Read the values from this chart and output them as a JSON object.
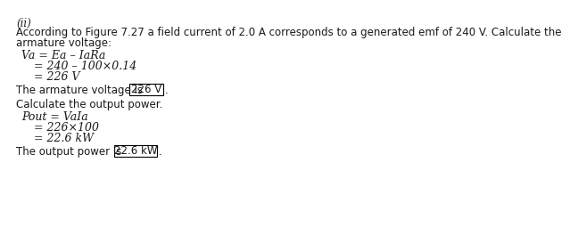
{
  "background_color": "#ffffff",
  "text_color": "#1a1a1a",
  "part_label": "(ii)",
  "intro_line1": "According to Figure 7.27 a field current of 2.0 A corresponds to a generated emf of 240 V. Calculate the",
  "intro_line2": "armature voltage:",
  "eq1": "Va = Ea – IaRa",
  "eq2": "= 240 – 100×0.14",
  "eq3": "= 226 V",
  "sent1_pre": "The armature voltage is ",
  "box1_text": "226 V",
  "sent1_post": ".",
  "calc_label": "Calculate the output power.",
  "eq4": "Pout = VaIa",
  "eq5": "= 226×100",
  "eq6": "= 22.6 kW",
  "sent2_pre": "The output power is ",
  "box2_text": "22.6 kW",
  "sent2_post": ".",
  "fs_body": 8.5,
  "fs_eq": 9.0,
  "fs_label": 8.5
}
